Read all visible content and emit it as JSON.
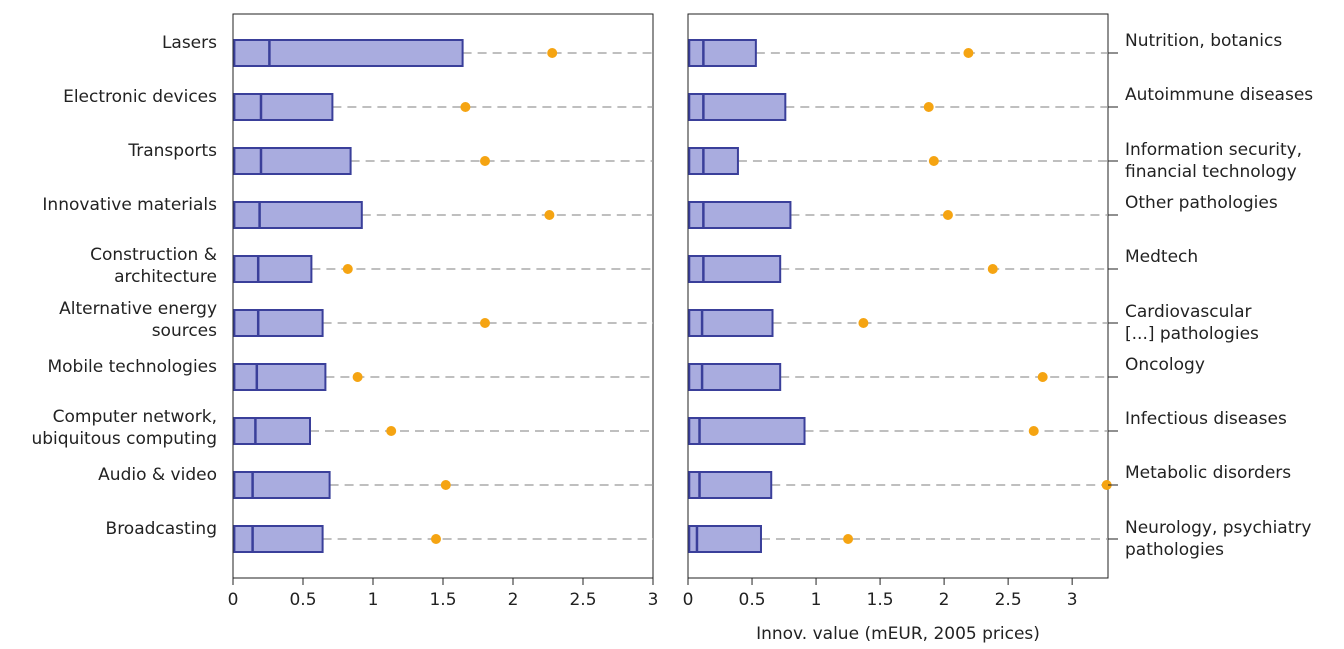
{
  "chart_data": [
    {
      "type": "boxplot",
      "label_side": "left",
      "box_color": "#a9acdf",
      "edge_color": "#3a3f9a",
      "mean_color": "#f5a412",
      "categories": [
        "Lasers",
        "Electronic devices",
        "Transports",
        "Innovative materials",
        "Construction &\narchitecture",
        "Alternative energy\nsources",
        "Mobile technologies",
        "Computer network,\nubiquitous computing",
        "Audio & video",
        "Broadcasting"
      ],
      "lower": [
        0.01,
        0.01,
        0.01,
        0.01,
        0.01,
        0.01,
        0.01,
        0.01,
        0.01,
        0.01
      ],
      "median": [
        0.26,
        0.2,
        0.2,
        0.19,
        0.18,
        0.18,
        0.17,
        0.16,
        0.14,
        0.14
      ],
      "upper": [
        1.64,
        0.71,
        0.84,
        0.92,
        0.56,
        0.64,
        0.66,
        0.55,
        0.69,
        0.64
      ],
      "mean": [
        2.28,
        1.66,
        1.8,
        2.26,
        0.82,
        1.8,
        0.89,
        1.13,
        1.52,
        1.45
      ],
      "xlim": [
        0,
        3
      ],
      "xticks": [
        0,
        0.5,
        1,
        1.5,
        2,
        2.5,
        3
      ]
    },
    {
      "type": "boxplot",
      "label_side": "right",
      "box_color": "#a9acdf",
      "edge_color": "#3a3f9a",
      "mean_color": "#f5a412",
      "x_label": "Innov. value (mEUR, 2005 prices)",
      "categories": [
        "Nutrition, botanics",
        "Autoimmune diseases",
        "Information security,\nfinancial technology",
        "Other pathologies",
        "Medtech",
        "Cardiovascular\n[...] pathologies",
        "Oncology",
        "Infectious diseases",
        "Metabolic disorders",
        "Neurology, psychiatry\npathologies"
      ],
      "lower": [
        0.01,
        0.01,
        0.01,
        0.01,
        0.01,
        0.01,
        0.01,
        0.01,
        0.01,
        0.01
      ],
      "median": [
        0.12,
        0.12,
        0.12,
        0.12,
        0.12,
        0.11,
        0.11,
        0.09,
        0.09,
        0.07
      ],
      "upper": [
        0.53,
        0.76,
        0.39,
        0.8,
        0.72,
        0.66,
        0.72,
        0.91,
        0.65,
        0.57
      ],
      "mean": [
        2.19,
        1.88,
        1.92,
        2.03,
        2.38,
        1.37,
        2.77,
        2.7,
        3.27,
        1.25
      ],
      "xlim": [
        0,
        3.28
      ],
      "xticks": [
        0,
        0.5,
        1,
        1.5,
        2,
        2.5,
        3
      ]
    }
  ]
}
